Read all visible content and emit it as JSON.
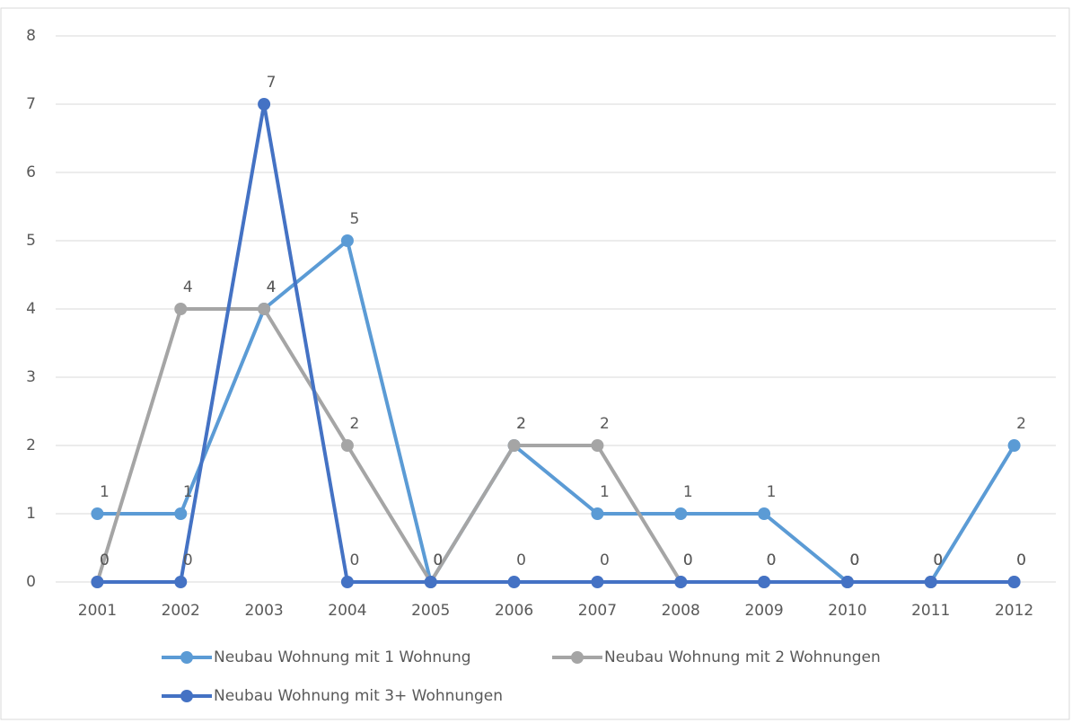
{
  "chart_data": {
    "type": "line",
    "categories": [
      "2001",
      "2002",
      "2003",
      "2004",
      "2005",
      "2006",
      "2007",
      "2008",
      "2009",
      "2010",
      "2011",
      "2012"
    ],
    "series": [
      {
        "name": "Neubau Wohnung mit 1 Wohnung",
        "color": "#5b9bd5",
        "values": [
          1,
          1,
          4,
          5,
          0,
          2,
          1,
          1,
          1,
          0,
          0,
          2
        ]
      },
      {
        "name": "Neubau Wohnung mit 2 Wohnungen",
        "color": "#a5a5a5",
        "values": [
          0,
          4,
          4,
          2,
          0,
          2,
          2,
          0,
          0,
          0,
          0,
          0
        ]
      },
      {
        "name": "Neubau Wohnung mit 3+ Wohnungen",
        "color": "#4472c4",
        "values": [
          0,
          0,
          7,
          0,
          0,
          0,
          0,
          0,
          0,
          0,
          0,
          0
        ]
      }
    ],
    "ylim": [
      0,
      8
    ],
    "yticks": [
      0,
      1,
      2,
      3,
      4,
      5,
      6,
      7,
      8
    ],
    "grid": true,
    "legend": "bottom"
  }
}
